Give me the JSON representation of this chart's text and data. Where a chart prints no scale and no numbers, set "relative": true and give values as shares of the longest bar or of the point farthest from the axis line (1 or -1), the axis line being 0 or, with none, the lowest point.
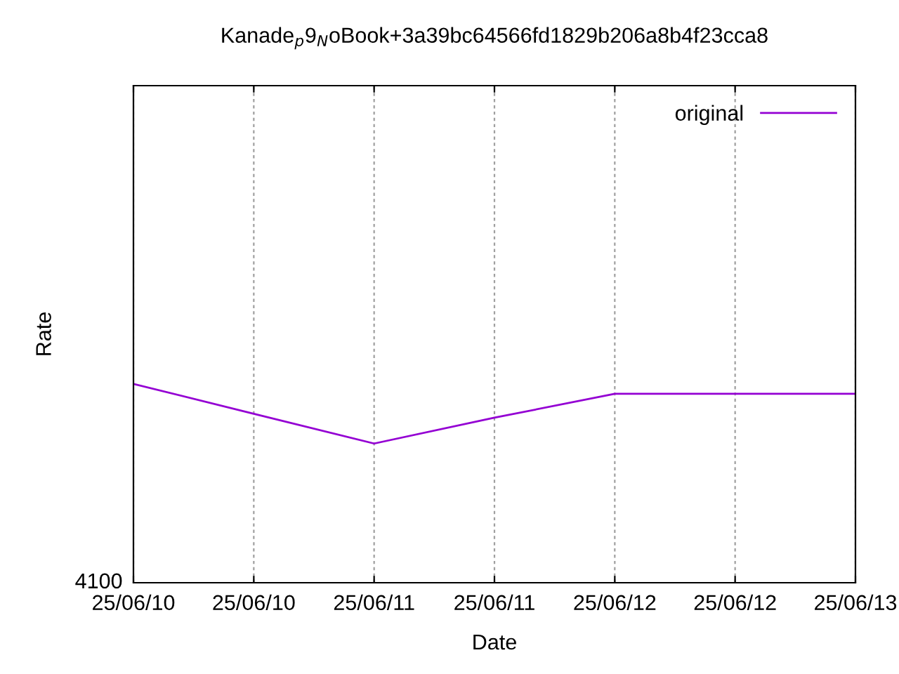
{
  "chart_data": {
    "type": "line",
    "title": "Kanade$_{p}$9$_{N}$oBook+3a39bc64566fd1829b206a8b4f23cca8",
    "xlabel": "Date",
    "ylabel": "Rate",
    "categories": [
      "25/06/10",
      "25/06/10",
      "25/06/11",
      "25/06/11",
      "25/06/12",
      "25/06/12",
      "25/06/13"
    ],
    "series": [
      {
        "name": "original",
        "color": "#9400d3",
        "values": [
          1,
          0.85,
          0.7,
          0.83,
          0.95,
          0.95,
          0.95
        ]
      }
    ],
    "relative": true,
    "annotations": [
      "4100"
    ],
    "grid": "x",
    "legend": "top right",
    "marker": "none",
    "line_style": "solid"
  }
}
